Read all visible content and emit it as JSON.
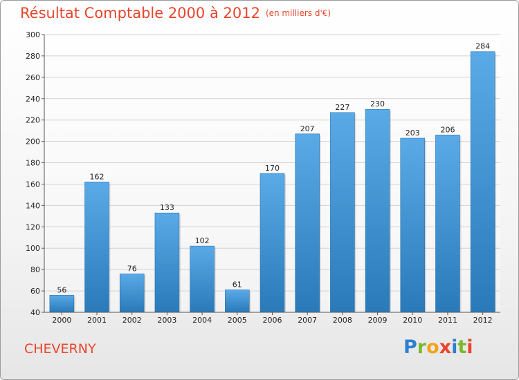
{
  "chart_data": {
    "type": "bar",
    "title": "Résultat Comptable 2000 à 2012",
    "subtitle": "(en milliers d'€)",
    "categories": [
      "2000",
      "2001",
      "2002",
      "2003",
      "2004",
      "2005",
      "2006",
      "2007",
      "2008",
      "2009",
      "2010",
      "2011",
      "2012"
    ],
    "values": [
      56,
      162,
      76,
      133,
      102,
      61,
      170,
      207,
      227,
      230,
      203,
      206,
      284
    ],
    "ylim": [
      40,
      300
    ],
    "yticks": [
      40,
      60,
      80,
      100,
      120,
      140,
      160,
      180,
      200,
      220,
      240,
      260,
      280,
      300
    ],
    "xlabel": "",
    "ylabel": "",
    "grid": true,
    "colors": {
      "bar_top": "#5aaae8",
      "bar_bottom": "#2a7ab9",
      "title": "#e8452c"
    }
  },
  "commune": "CHEVERNY",
  "logo": {
    "letters": [
      "P",
      "r",
      "o",
      "x",
      "i",
      "t",
      "i"
    ]
  }
}
